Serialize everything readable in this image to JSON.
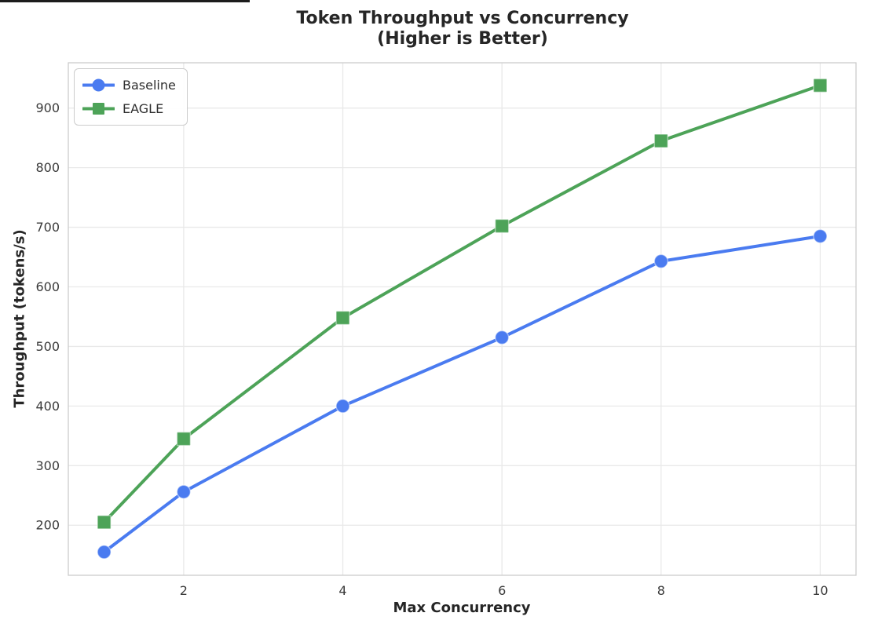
{
  "top_fragment": {
    "note": "dark sliver of cropped window edge, no text"
  },
  "chart_data": {
    "type": "line",
    "title_line1": "Token Throughput vs Concurrency",
    "title_line2": "(Higher is Better)",
    "xlabel": "Max Concurrency",
    "ylabel": "Throughput (tokens/s)",
    "x": [
      1,
      2,
      4,
      6,
      8,
      10
    ],
    "series": [
      {
        "name": "Baseline",
        "marker": "circle",
        "color": "#4a7bf0",
        "values": [
          155,
          256,
          400,
          515,
          643,
          685
        ]
      },
      {
        "name": "EAGLE",
        "marker": "square",
        "color": "#4da358",
        "values": [
          205,
          345,
          548,
          702,
          845,
          938
        ]
      }
    ],
    "xticks": [
      2,
      4,
      6,
      8,
      10
    ],
    "yticks": [
      200,
      300,
      400,
      500,
      600,
      700,
      800,
      900
    ],
    "xlim": [
      0.55,
      10.45
    ],
    "ylim": [
      116,
      976
    ],
    "grid": true,
    "legend_position": "upper left"
  },
  "style": {
    "background": "#ffffff",
    "grid_color": "#e9e9e9",
    "spine_color": "#cccccc",
    "tick_label_color": "#3a3a3a",
    "title_color": "#262626",
    "marker_edge": "rgba(255,255,255,0.45)"
  }
}
